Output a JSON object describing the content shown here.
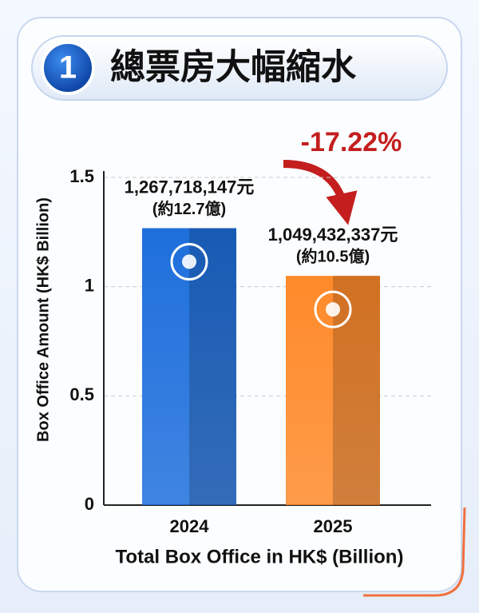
{
  "chart_data": {
    "type": "bar",
    "badge": "1",
    "title": "總票房大幅縮水",
    "annotation": "-17.22%",
    "x_label": "Total Box Office in HK$ (Billion)",
    "y_label": "Box Office Amount (HK$ Billion)",
    "categories": [
      "2024",
      "2025"
    ],
    "values": [
      1.267718147,
      1.049432337
    ],
    "value_labels": [
      [
        "1,267,718,147元",
        "(約12.7億)"
      ],
      [
        "1,049,432,337元",
        "(約10.5億)"
      ]
    ],
    "colors": [
      "#1e6fdc",
      "#ff8a2a"
    ],
    "annotation_color": "#c41e1e",
    "ylim": [
      0,
      1.5
    ],
    "yticks": [
      0,
      0.5,
      1,
      1.5
    ],
    "grid": true
  }
}
